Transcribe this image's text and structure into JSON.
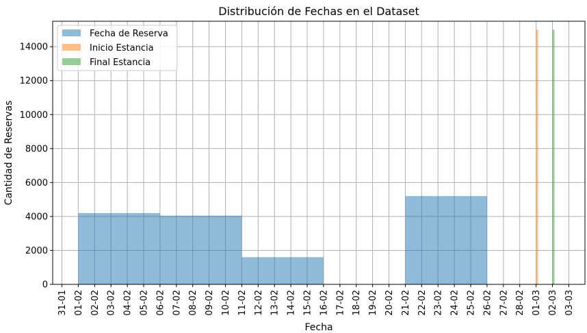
{
  "chart_data": {
    "type": "bar",
    "title": "Distribución de Fechas en el Dataset",
    "xlabel": "Fecha",
    "ylabel": "Cantidad de Reservas",
    "ylim": [
      0,
      15500
    ],
    "yticks": [
      0,
      2000,
      4000,
      6000,
      8000,
      10000,
      12000,
      14000
    ],
    "xticks": [
      "31-01",
      "01-02",
      "02-02",
      "03-02",
      "04-02",
      "05-02",
      "06-02",
      "07-02",
      "08-02",
      "09-02",
      "10-02",
      "11-02",
      "12-02",
      "13-02",
      "14-02",
      "15-02",
      "16-02",
      "17-02",
      "18-02",
      "19-02",
      "20-02",
      "21-02",
      "22-02",
      "23-02",
      "24-02",
      "25-02",
      "26-02",
      "27-02",
      "28-02",
      "01-03",
      "02-03",
      "03-03"
    ],
    "grid": true,
    "legend_position": "top-left",
    "series": [
      {
        "name": "Fecha de Reserva",
        "color": "#1f77b4",
        "opacity": 0.5,
        "bins": [
          {
            "start": 1,
            "end": 6,
            "value": 4200
          },
          {
            "start": 6,
            "end": 11,
            "value": 4050
          },
          {
            "start": 11,
            "end": 16,
            "value": 1600
          },
          {
            "start": 21,
            "end": 26,
            "value": 5200
          }
        ]
      },
      {
        "name": "Inicio Estancia",
        "color": "#ff7f0e",
        "opacity": 0.5,
        "bins": [
          {
            "start": 29,
            "end": 29.12,
            "value": 15000
          }
        ]
      },
      {
        "name": "Final Estancia",
        "color": "#2ca02c",
        "opacity": 0.5,
        "bins": [
          {
            "start": 30,
            "end": 30.12,
            "value": 15000
          }
        ]
      }
    ]
  }
}
